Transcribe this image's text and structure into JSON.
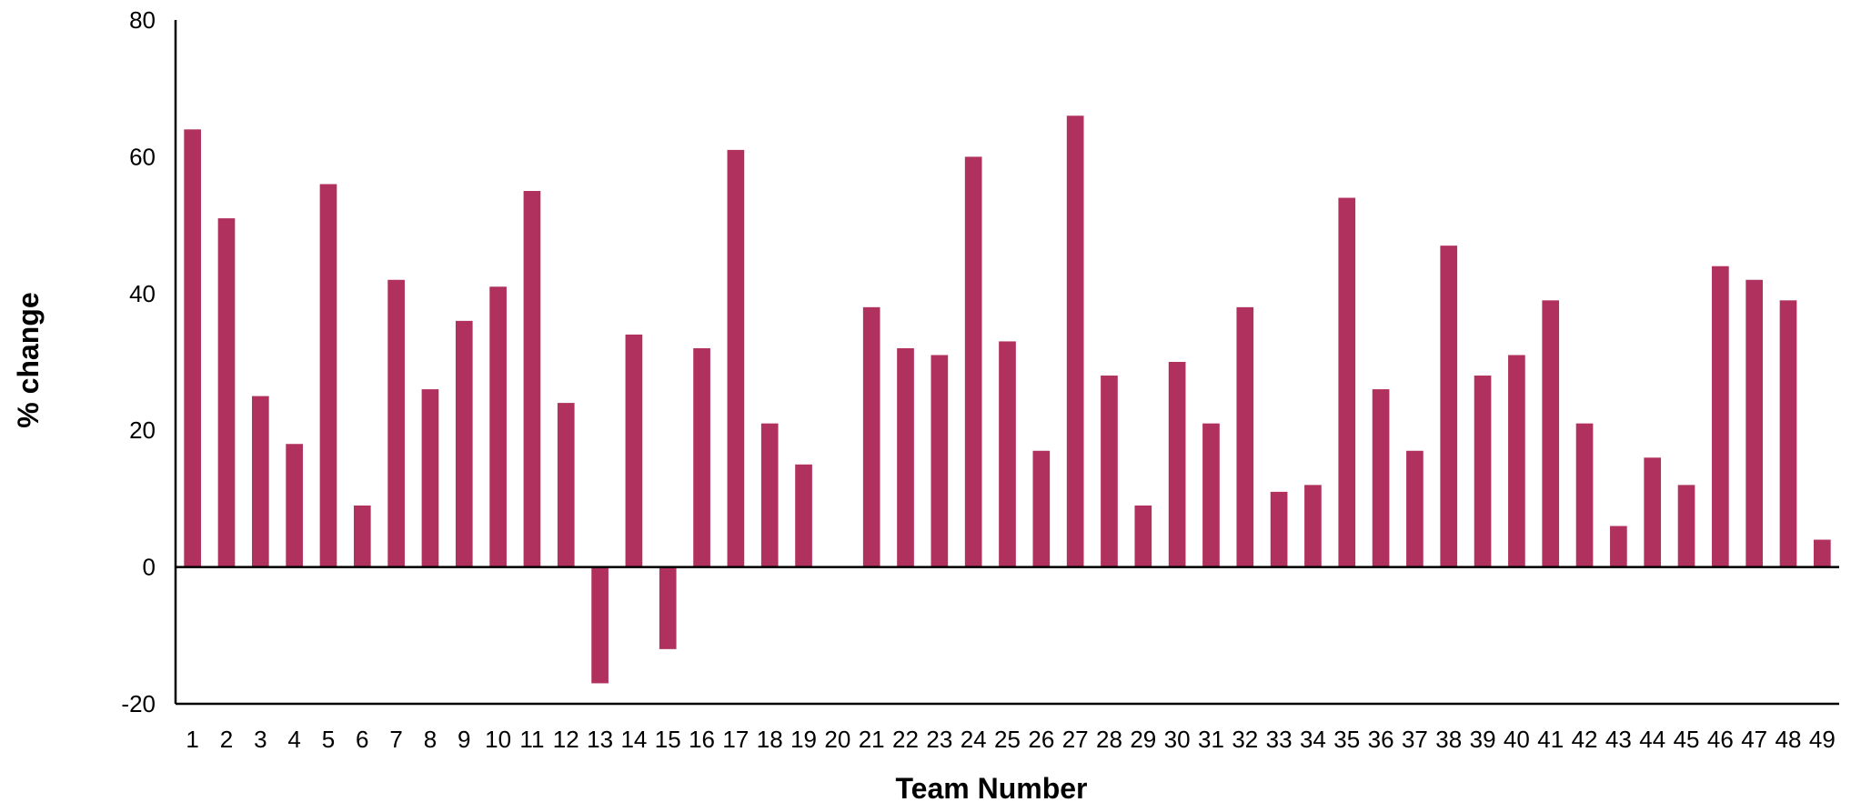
{
  "chart_data": {
    "type": "bar",
    "xlabel": "Team Number",
    "ylabel": "% change",
    "ylim": [
      -20,
      80
    ],
    "yticks": [
      "-20",
      "0",
      "20",
      "40",
      "60",
      "80"
    ],
    "grid": false,
    "legend": "none",
    "bar_color": "#b0305e",
    "categories": [
      "1",
      "2",
      "3",
      "4",
      "5",
      "6",
      "7",
      "8",
      "9",
      "10",
      "11",
      "12",
      "13",
      "14",
      "15",
      "16",
      "17",
      "18",
      "19",
      "20",
      "21",
      "22",
      "23",
      "24",
      "25",
      "26",
      "27",
      "28",
      "29",
      "30",
      "31",
      "32",
      "33",
      "34",
      "35",
      "36",
      "37",
      "38",
      "39",
      "40",
      "41",
      "42",
      "43",
      "44",
      "45",
      "46",
      "47",
      "48",
      "49"
    ],
    "values": [
      64,
      51,
      25,
      18,
      56,
      9,
      42,
      26,
      36,
      41,
      55,
      24,
      -17,
      34,
      -12,
      32,
      61,
      21,
      15,
      0,
      38,
      32,
      31,
      60,
      33,
      17,
      66,
      28,
      9,
      30,
      21,
      38,
      11,
      12,
      54,
      26,
      17,
      47,
      28,
      31,
      39,
      21,
      6,
      16,
      12,
      44,
      42,
      39,
      4
    ]
  }
}
